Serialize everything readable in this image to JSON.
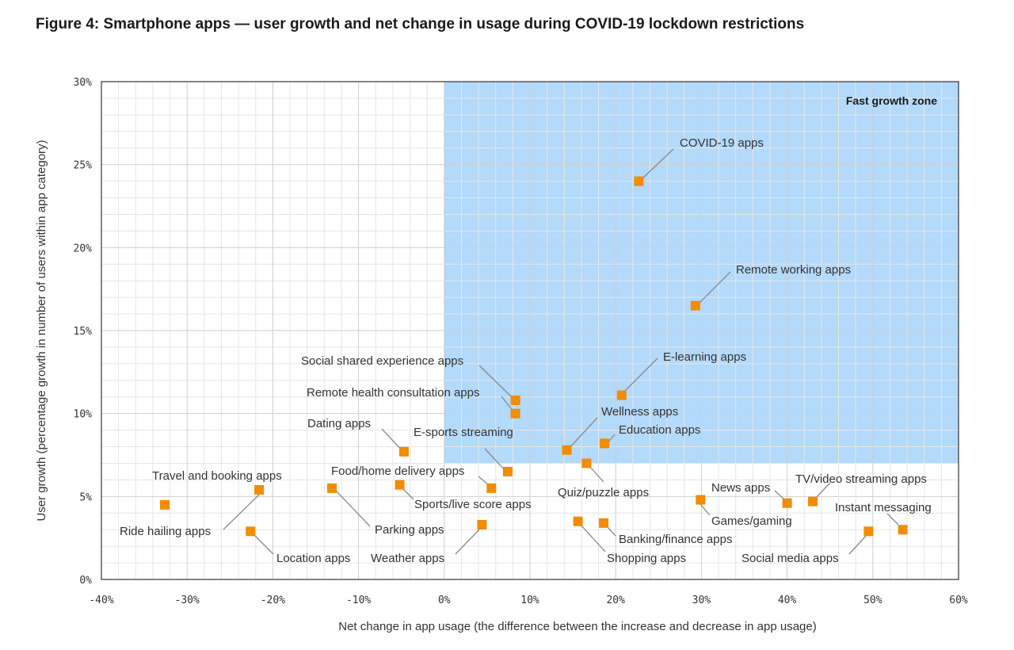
{
  "title": "Figure 4: Smartphone apps — user growth and net change in usage during COVID-19 lockdown restrictions",
  "colors": {
    "marker": "#f28c00",
    "zone": "#b3d9fb",
    "grid": "#d9d9d9",
    "leader": "#8a8a8a"
  },
  "chart_data": {
    "type": "scatter",
    "xlabel": "Net change in app usage (the difference between the increase and decrease in app usage)",
    "ylabel": "User growth (percentage growth in number of users within app category)",
    "xlim": [
      -40,
      60
    ],
    "ylim": [
      0,
      30
    ],
    "x_ticks": [
      -40,
      -30,
      -20,
      -10,
      0,
      10,
      20,
      30,
      40,
      50,
      60
    ],
    "y_ticks": [
      0,
      5,
      10,
      15,
      20,
      25,
      30
    ],
    "x_tick_labels": [
      "-40%",
      "-30%",
      "-20%",
      "-10%",
      "0%",
      "10%",
      "20%",
      "30%",
      "40%",
      "50%",
      "60%"
    ],
    "y_tick_labels": [
      "0%",
      "5%",
      "10%",
      "15%",
      "20%",
      "25%",
      "30%"
    ],
    "grid": true,
    "zone": {
      "label": "Fast growth zone",
      "x_min": 0,
      "x_max": 60,
      "y_min": 7,
      "y_max": 30
    },
    "points": [
      {
        "label": "COVID-19 apps",
        "x": 22.7,
        "y": 24.0
      },
      {
        "label": "Remote working apps",
        "x": 29.3,
        "y": 16.5
      },
      {
        "label": "E-learning apps",
        "x": 20.7,
        "y": 11.1
      },
      {
        "label": "Social shared experience apps",
        "x": 8.3,
        "y": 10.8
      },
      {
        "label": "Remote health consultation apps",
        "x": 8.3,
        "y": 10.0
      },
      {
        "label": "Wellness apps",
        "x": 14.3,
        "y": 7.8
      },
      {
        "label": "Education apps",
        "x": 18.7,
        "y": 8.2
      },
      {
        "label": "Dating apps",
        "x": -4.7,
        "y": 7.7
      },
      {
        "label": "E-sports streaming",
        "x": 7.4,
        "y": 6.5
      },
      {
        "label": "Quiz/puzzle apps",
        "x": 16.6,
        "y": 7.0
      },
      {
        "label": "Food/home delivery apps",
        "x": 5.5,
        "y": 5.5
      },
      {
        "label": "Sports/live score apps",
        "x": -5.2,
        "y": 5.7
      },
      {
        "label": "Parking apps",
        "x": -13.1,
        "y": 5.5
      },
      {
        "label": "Travel and booking apps",
        "x": -21.6,
        "y": 5.4
      },
      {
        "label": "Ride hailing apps",
        "x": -32.6,
        "y": 4.5
      },
      {
        "label": "Location apps",
        "x": -22.6,
        "y": 2.9
      },
      {
        "label": "Weather apps",
        "x": 4.4,
        "y": 3.3
      },
      {
        "label": "Shopping apps",
        "x": 15.6,
        "y": 3.5
      },
      {
        "label": "Banking/finance apps",
        "x": 18.6,
        "y": 3.4
      },
      {
        "label": "Games/gaming",
        "x": 29.9,
        "y": 4.8
      },
      {
        "label": "News apps",
        "x": 40.0,
        "y": 4.6
      },
      {
        "label": "TV/video streaming apps",
        "x": 43.0,
        "y": 4.7
      },
      {
        "label": "Instant messaging",
        "x": 53.5,
        "y": 3.0
      },
      {
        "label": "Social media apps",
        "x": 49.5,
        "y": 2.9
      }
    ]
  }
}
